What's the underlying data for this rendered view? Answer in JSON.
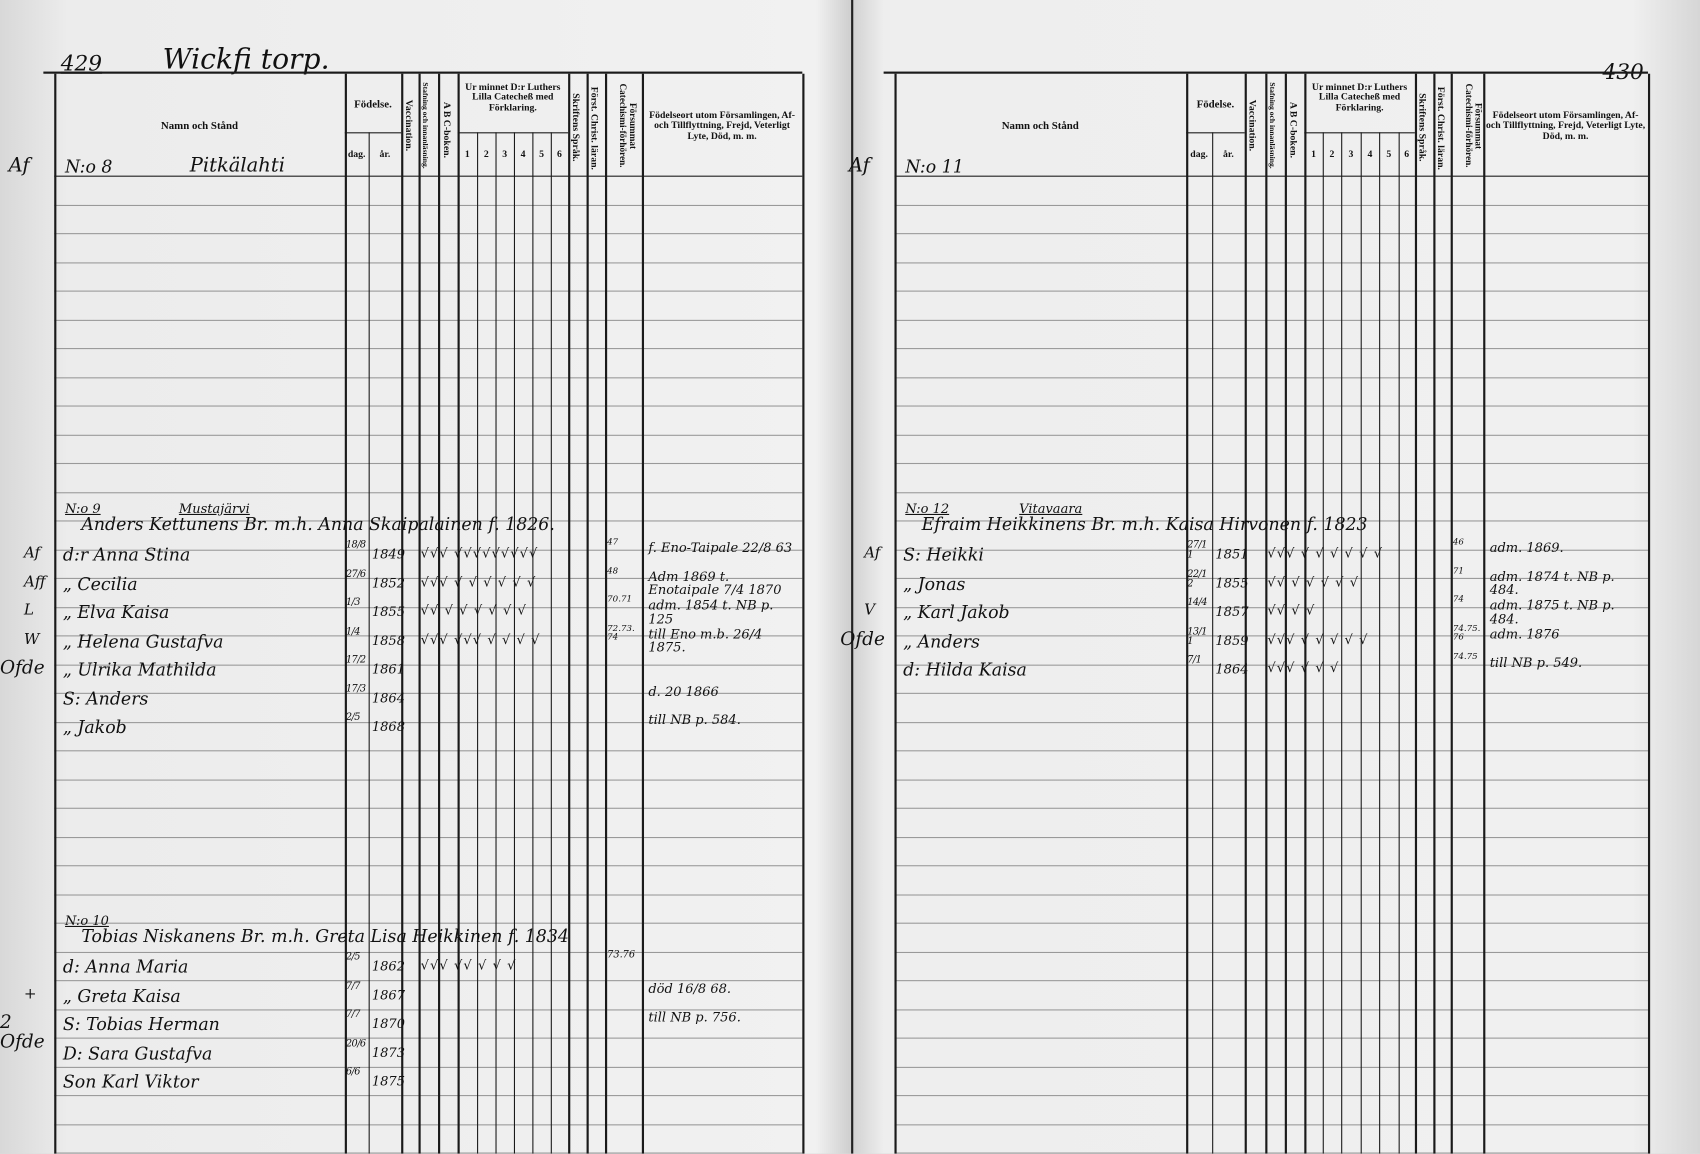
{
  "headers": {
    "name": "Namn och Stånd",
    "birth": "Födelse.",
    "day": "dag.",
    "year": "år.",
    "vaccination": "Vaccination.",
    "reading": "Stafning och innanläsning.",
    "abc": "A B C-boken.",
    "catechism": "Ur minnet D:r Luthers Lilla Catecheß med Förklaring.",
    "cat_cols": [
      "1",
      "2",
      "3",
      "4",
      "5",
      "6"
    ],
    "scripture": "Skriftens Språk.",
    "christ": "Först. Christ. läran.",
    "missed": "Försummat Catechismi-förhören.",
    "notes": "Födelseort utom Församlingen, Af- och Tillflyttning, Frejd, Veterligt Lyte, Död, m. m."
  },
  "left_page": {
    "page_number": "429",
    "place": "Wickfi torp.",
    "first_household": {
      "margin": "Af",
      "number": "N:o 8",
      "name": "Pitkälahti"
    },
    "households": [
      {
        "number": "N:o 9",
        "farm": "Mustajärvi",
        "head": "Anders Kettunens Br. m.h. Anna Skaipalainen f. 1826.",
        "bracket": "Ofde",
        "members": [
          {
            "margin": "Af",
            "name": "d:r Anna Stina",
            "day": "18/8",
            "year": "1849",
            "marks": "√√√ √√√√√√√√√",
            "christ": "47",
            "notes": "f. Eno-Taipale 22/8 63"
          },
          {
            "margin": "Aff",
            "name": "„ Cecilia",
            "day": "27/6",
            "year": "1852",
            "marks": "√√√ √ √ √ √ √ √",
            "christ": "48",
            "notes": "Adm 1869 t. Enotaipale 7/4 1870"
          },
          {
            "margin": "L",
            "name": "„ Elva Kaisa",
            "day": "1/3",
            "year": "1855",
            "marks": "√√ √ √ √ √ √ √",
            "christ": "70.71",
            "notes": "adm. 1854 t. NB p. 125"
          },
          {
            "margin": "W",
            "name": "„ Helena Gustafva",
            "day": "1/4",
            "year": "1858",
            "marks": "√√√ √√√ √ √ √ √",
            "christ": "72.73.74",
            "notes": "till Eno m.b. 26/4 1875."
          },
          {
            "margin": "",
            "name": "„ Ulrika Mathilda",
            "day": "17/2",
            "year": "1861",
            "marks": "",
            "christ": "",
            "notes": ""
          },
          {
            "margin": "",
            "name": "S: Anders",
            "day": "17/3",
            "year": "1864",
            "marks": "",
            "christ": "",
            "notes": "d. 20 1866"
          },
          {
            "margin": "",
            "name": "„ Jakob",
            "day": "2/5",
            "year": "1868",
            "marks": "",
            "christ": "",
            "notes": "till NB p. 584."
          }
        ]
      },
      {
        "number": "N:o 10",
        "farm": "",
        "head": "Tobias Niskanens Br. m.h. Greta Lisa Heikkinen f. 1834",
        "head_christ": "73.76",
        "bracket": "2 Ofde",
        "members": [
          {
            "margin": "",
            "name": "d: Anna Maria",
            "day": "2/5",
            "year": "1862",
            "marks": "√√√ √√ √ √ √",
            "christ": "",
            "notes": ""
          },
          {
            "margin": "+",
            "name": "„ Greta Kaisa",
            "day": "7/7",
            "year": "1867",
            "marks": "",
            "christ": "",
            "notes": "död 16/8 68."
          },
          {
            "margin": "",
            "name": "S: Tobias Herman",
            "day": "7/7",
            "year": "1870",
            "marks": "",
            "christ": "",
            "notes": "till NB p. 756."
          },
          {
            "margin": "",
            "name": "D: Sara Gustafva",
            "day": "20/6",
            "year": "1873",
            "marks": "",
            "christ": "",
            "notes": ""
          },
          {
            "margin": "",
            "name": "Son Karl Viktor",
            "day": "6/6",
            "year": "1875",
            "marks": "",
            "christ": "",
            "notes": ""
          }
        ]
      }
    ]
  },
  "right_page": {
    "page_number": "430",
    "first_household": {
      "margin": "Af",
      "number": "N:o 11",
      "name": ""
    },
    "households": [
      {
        "number": "N:o 12",
        "farm": "Vitavaara",
        "head": "Efraim Heikkinens Br. m.h. Kaisa Hirvonen f. 1823",
        "bracket": "Ofde",
        "members": [
          {
            "margin": "Af",
            "name": "S: Heikki",
            "day": "27/11",
            "year": "1851",
            "marks": "√√√ √ √ √ √ √ √",
            "christ": "46",
            "notes": "adm. 1869."
          },
          {
            "margin": "",
            "name": "„ Jonas",
            "day": "22/12",
            "year": "1855",
            "marks": "√√ √ √ √ √ √",
            "christ": "71",
            "notes": "adm. 1874 t. NB p. 484."
          },
          {
            "margin": "V",
            "name": "„ Karl Jakob",
            "day": "14/4",
            "year": "1857",
            "marks": "√√ √ √",
            "christ": "74",
            "notes": "adm. 1875 t. NB p. 484."
          },
          {
            "margin": "",
            "name": "„ Anders",
            "day": "13/11",
            "year": "1859",
            "marks": "√√√ √ √ √ √ √",
            "christ": "74.75.76",
            "notes": "adm. 1876"
          },
          {
            "margin": "",
            "name": "d: Hilda Kaisa",
            "day": "7/1",
            "year": "1864",
            "marks": "√√√ √ √ √",
            "christ": "74.75",
            "notes": "till NB p. 549."
          }
        ]
      }
    ]
  }
}
